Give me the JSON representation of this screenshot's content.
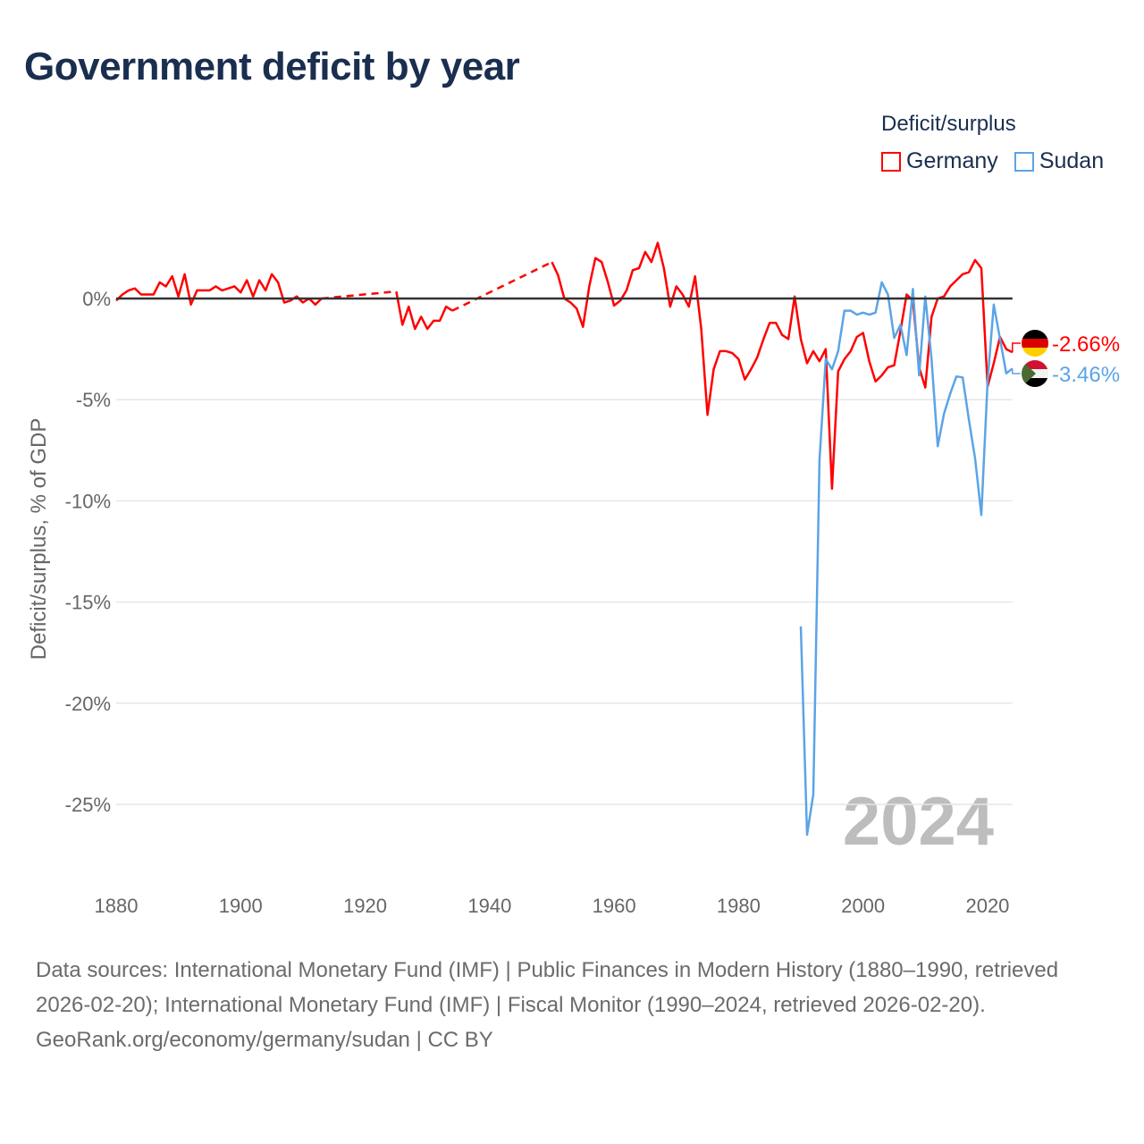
{
  "title": "Government deficit by year",
  "legend": {
    "title": "Deficit/surplus",
    "items": [
      {
        "label": "Germany",
        "color": "#ff0000"
      },
      {
        "label": "Sudan",
        "color": "#5ba4e6"
      }
    ]
  },
  "year_watermark": "2024",
  "footer": {
    "sources": "Data sources: International Monetary Fund (IMF) | Public Finances in Modern History (1880–1990, retrieved 2026-02-20); International Monetary Fund (IMF) | Fiscal Monitor (1990–2024, retrieved 2026-02-20).",
    "credit": "GeoRank.org/economy/germany/sudan | CC BY"
  },
  "chart_data": {
    "type": "line",
    "title": "Government deficit by year",
    "xlabel": "",
    "ylabel": "Deficit/surplus, % of GDP",
    "xlim": [
      1880,
      2024
    ],
    "ylim": [
      -28,
      3.2
    ],
    "xticks": [
      1880,
      1900,
      1920,
      1940,
      1960,
      1980,
      2000,
      2020
    ],
    "xtick_labels": [
      "1880",
      "1900",
      "1920",
      "1940",
      "1960",
      "1980",
      "2000",
      "2020"
    ],
    "yticks": [
      0,
      -5,
      -10,
      -15,
      -20,
      -25
    ],
    "ytick_labels": [
      "0%",
      "-5%",
      "-10%",
      "-15%",
      "-20%",
      "-25%"
    ],
    "grid": true,
    "legend_position": "top-right",
    "series": [
      {
        "name": "Germany",
        "color": "#ff0000",
        "end_label": "-2.66%",
        "x0": 1880,
        "values": [
          -0.1,
          0.2,
          0.4,
          0.5,
          0.2,
          0.2,
          0.2,
          0.8,
          0.6,
          1.1,
          0.1,
          1.2,
          -0.3,
          0.4,
          0.4,
          0.4,
          0.6,
          0.4,
          0.5,
          0.6,
          0.3,
          0.9,
          0.1,
          0.9,
          0.4,
          1.2,
          0.8,
          -0.2,
          -0.1,
          0.1,
          -0.2,
          0.0,
          -0.3,
          0.0,
          null,
          null,
          null,
          null,
          null,
          null,
          null,
          null,
          null,
          null,
          null,
          0.35,
          -1.3,
          -0.4,
          -1.5,
          -0.9,
          -1.5,
          -1.1,
          -1.1,
          -0.4,
          -0.6,
          null,
          null,
          null,
          null,
          null,
          null,
          null,
          null,
          null,
          null,
          null,
          null,
          null,
          null,
          null,
          1.8,
          1.15,
          0.0,
          -0.2,
          -0.5,
          -1.4,
          0.6,
          2.0,
          1.8,
          0.8,
          -0.35,
          -0.1,
          0.4,
          1.4,
          1.5,
          2.3,
          1.8,
          2.75,
          1.5,
          -0.4,
          0.6,
          0.2,
          -0.4,
          1.1,
          -1.5,
          -5.75,
          -3.5,
          -2.6,
          -2.6,
          -2.7,
          -3.0,
          -4.0,
          -3.5,
          -2.9,
          -2.0,
          -1.2,
          -1.2,
          -1.8,
          -2.0,
          0.1,
          -2.0,
          -3.2,
          -2.6,
          -3.1,
          -2.5,
          -9.4,
          -3.6,
          -3.0,
          -2.6,
          -1.9,
          -1.7,
          -3.1,
          -4.1,
          -3.8,
          -3.4,
          -3.3,
          -1.6,
          0.2,
          -0.1,
          -3.4,
          -4.4,
          -0.9,
          0.0,
          0.1,
          0.6,
          0.9,
          1.2,
          1.3,
          1.9,
          1.5,
          -4.35,
          -3.2,
          -1.9,
          -2.5,
          -2.66
        ]
      },
      {
        "name": "Sudan",
        "color": "#5ba4e6",
        "end_label": "-3.46%",
        "x0": 1990,
        "values": [
          -16.2,
          -26.5,
          -24.5,
          -8.0,
          -3.0,
          -3.5,
          -2.6,
          -0.6,
          -0.6,
          -0.8,
          -0.7,
          -0.8,
          -0.7,
          0.8,
          0.2,
          -1.95,
          -1.3,
          -2.8,
          0.47,
          -3.8,
          0.1,
          -3.0,
          -7.3,
          -5.7,
          -4.7,
          -3.85,
          -3.9,
          -6.0,
          -7.9,
          -10.7,
          -4.1,
          -0.3,
          -2.0,
          -3.7,
          -3.46
        ]
      }
    ]
  }
}
